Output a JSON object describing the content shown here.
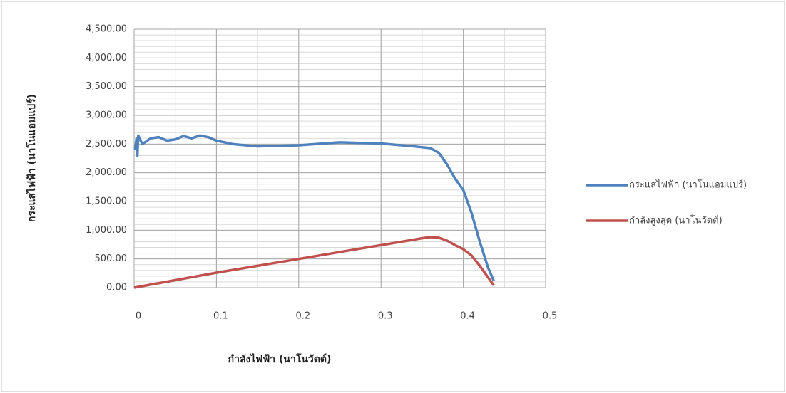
{
  "chart_data": {
    "type": "line",
    "x_label": "กำลังไฟฟ้า (นาโนวัตต์)",
    "y_label": "กระแสไฟฟ้า (นาโนแอมแปร์)",
    "xlim": [
      0,
      0.5
    ],
    "xticks": [
      0,
      0.1,
      0.2,
      0.3,
      0.4,
      0.5
    ],
    "ylim": [
      0,
      4500
    ],
    "yticks": [
      {
        "value": 0,
        "label": "0.00"
      },
      {
        "value": 500,
        "label": "500.00"
      },
      {
        "value": 1000,
        "label": "1,000.00"
      },
      {
        "value": 1500,
        "label": "1,500.00"
      },
      {
        "value": 2000,
        "label": "2,000.00"
      },
      {
        "value": 2500,
        "label": "2,500.00"
      },
      {
        "value": 3000,
        "label": "3,000.00"
      },
      {
        "value": 3500,
        "label": "3,500.00"
      },
      {
        "value": 4000,
        "label": "4,000.00"
      },
      {
        "value": 4500,
        "label": "4,500.00"
      }
    ],
    "grid": true,
    "y_minor_step": 100,
    "x_minor_step": 0.05,
    "legend": "right",
    "series": [
      {
        "name": "กระแสไฟฟ้า (นาโนแอมแปร์)",
        "color": "#4f81bd",
        "x": [
          0.001,
          0.003,
          0.004,
          0.005,
          0.01,
          0.02,
          0.03,
          0.04,
          0.05,
          0.06,
          0.07,
          0.08,
          0.09,
          0.1,
          0.12,
          0.15,
          0.2,
          0.25,
          0.3,
          0.34,
          0.36,
          0.37,
          0.38,
          0.39,
          0.4,
          0.41,
          0.42,
          0.43,
          0.437
        ],
        "values": [
          2400,
          2600,
          2300,
          2650,
          2500,
          2600,
          2620,
          2560,
          2580,
          2640,
          2600,
          2650,
          2620,
          2560,
          2500,
          2460,
          2480,
          2530,
          2510,
          2460,
          2430,
          2350,
          2150,
          1900,
          1700,
          1300,
          800,
          350,
          120
        ]
      },
      {
        "name": "กำลังสูงสุด (นาโนวัตต์)",
        "color": "#c0504d",
        "x": [
          0,
          0.1,
          0.2,
          0.3,
          0.35,
          0.36,
          0.37,
          0.38,
          0.39,
          0.4,
          0.41,
          0.42,
          0.43,
          0.437
        ],
        "values": [
          0,
          260,
          500,
          740,
          860,
          880,
          870,
          820,
          740,
          670,
          560,
          380,
          180,
          40
        ]
      }
    ]
  }
}
